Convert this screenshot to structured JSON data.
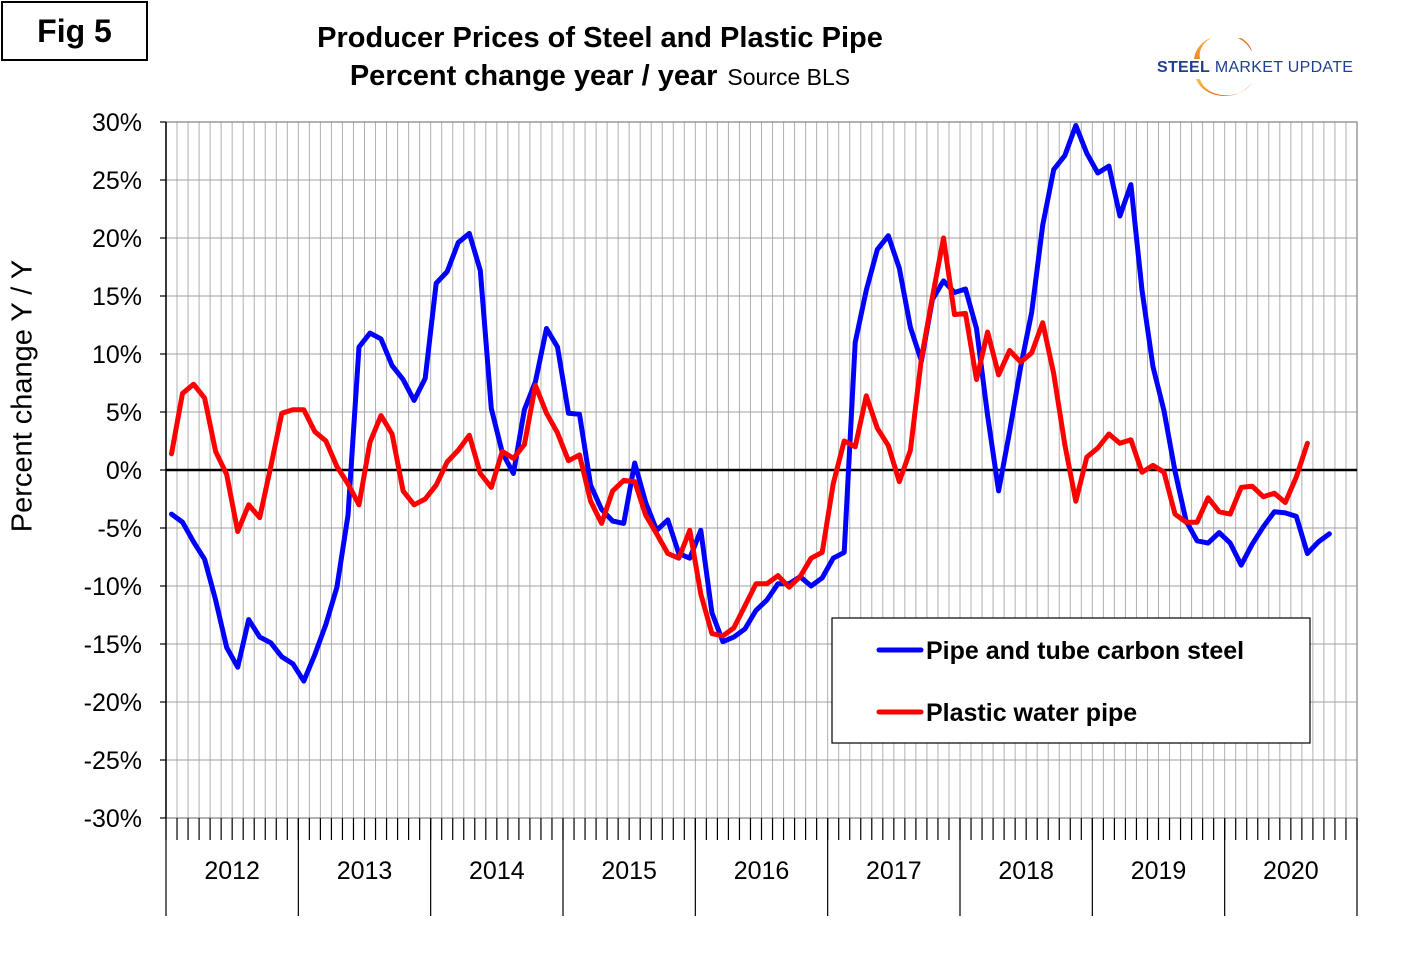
{
  "figure_label": "Fig 5",
  "logo": {
    "bold": "STEEL",
    "regular": "MARKET UPDATE"
  },
  "colors": {
    "steel": "#0000ff",
    "plastic": "#ff0000",
    "grid": "#b0b0b0",
    "axis": "#000000"
  },
  "chart_data": {
    "type": "line",
    "title": "Producer Prices of Steel and Plastic Pipe",
    "subtitle": "Percent change year / year",
    "source": "Source BLS",
    "xlabel": "",
    "ylabel": "Percent change Y / Y",
    "ylim": [
      -30,
      30
    ],
    "ytick_values": [
      -30,
      -25,
      -20,
      -15,
      -10,
      -5,
      0,
      5,
      10,
      15,
      20,
      25,
      30
    ],
    "ytick_labels": [
      "-30%",
      "-25%",
      "-20%",
      "-15%",
      "-10%",
      "-5%",
      "0%",
      "5%",
      "10%",
      "15%",
      "20%",
      "25%",
      "30%"
    ],
    "year_labels": [
      "2012",
      "2013",
      "2014",
      "2015",
      "2016",
      "2017",
      "2018",
      "2019",
      "2020"
    ],
    "months_per_year": 12,
    "total_months": 108,
    "grid": true,
    "legend_position": "bottom-right",
    "series": [
      {
        "name": "Pipe and tube carbon steel",
        "color": "#0000ff",
        "values": [
          -3.8,
          -4.5,
          -6.2,
          -7.7,
          -11.2,
          -15.3,
          -17.0,
          -12.9,
          -14.4,
          -14.9,
          -16.1,
          -16.7,
          -18.2,
          -15.9,
          -13.3,
          -10.1,
          -3.9,
          10.6,
          11.8,
          11.3,
          9.0,
          7.8,
          6.0,
          7.9,
          16.1,
          17.1,
          19.6,
          20.4,
          17.2,
          5.3,
          1.5,
          -0.3,
          5.2,
          7.6,
          12.2,
          10.6,
          4.9,
          4.8,
          -1.3,
          -3.4,
          -4.4,
          -4.6,
          0.6,
          -2.8,
          -5.2,
          -4.3,
          -7.2,
          -7.6,
          -5.2,
          -12.3,
          -14.8,
          -14.4,
          -13.7,
          -12.1,
          -11.2,
          -9.8,
          -9.8,
          -9.2,
          -10.0,
          -9.3,
          -7.6,
          -7.1,
          11.0,
          15.5,
          19.0,
          20.2,
          17.4,
          12.3,
          9.4,
          14.7,
          16.3,
          15.3,
          15.6,
          12.2,
          4.7,
          -1.8,
          3.3,
          8.9,
          13.6,
          21.1,
          25.9,
          27.1,
          29.7,
          27.3,
          25.6,
          26.2,
          21.9,
          24.6,
          15.5,
          8.9,
          5.1,
          -0.1,
          -4.4,
          -6.1,
          -6.3,
          -5.4,
          -6.3,
          -8.2,
          -6.4,
          -4.9,
          -3.6,
          -3.7,
          -4.0,
          -7.2,
          -6.2,
          -5.5,
          null,
          null
        ]
      },
      {
        "name": "Plastic water pipe",
        "color": "#ff0000",
        "values": [
          1.4,
          6.6,
          7.4,
          6.2,
          1.6,
          -0.4,
          -5.3,
          -3.0,
          -4.1,
          0.3,
          4.9,
          5.2,
          5.2,
          3.3,
          2.5,
          0.3,
          -1.2,
          -3.0,
          2.4,
          4.7,
          3.1,
          -1.8,
          -3.0,
          -2.5,
          -1.3,
          0.7,
          1.7,
          3.0,
          -0.3,
          -1.5,
          1.6,
          1.0,
          2.2,
          7.3,
          4.9,
          3.2,
          0.8,
          1.3,
          -2.7,
          -4.6,
          -1.8,
          -0.9,
          -1.0,
          -3.9,
          -5.5,
          -7.2,
          -7.6,
          -5.2,
          -10.7,
          -14.1,
          -14.3,
          -13.6,
          -11.7,
          -9.8,
          -9.8,
          -9.1,
          -10.1,
          -9.2,
          -7.6,
          -7.1,
          -1.2,
          2.5,
          2.0,
          6.4,
          3.6,
          2.1,
          -1.0,
          1.7,
          9.6,
          14.9,
          20.0,
          13.4,
          13.5,
          7.8,
          11.9,
          8.2,
          10.3,
          9.3,
          10.1,
          12.7,
          8.3,
          2.2,
          -2.7,
          1.1,
          1.9,
          3.1,
          2.3,
          2.6,
          -0.2,
          0.4,
          -0.2,
          -3.8,
          -4.5,
          -4.5,
          -2.4,
          -3.6,
          -3.8,
          -1.5,
          -1.4,
          -2.3,
          -2.0,
          -2.8,
          -0.6,
          2.3,
          null,
          null,
          null,
          null
        ]
      }
    ]
  }
}
